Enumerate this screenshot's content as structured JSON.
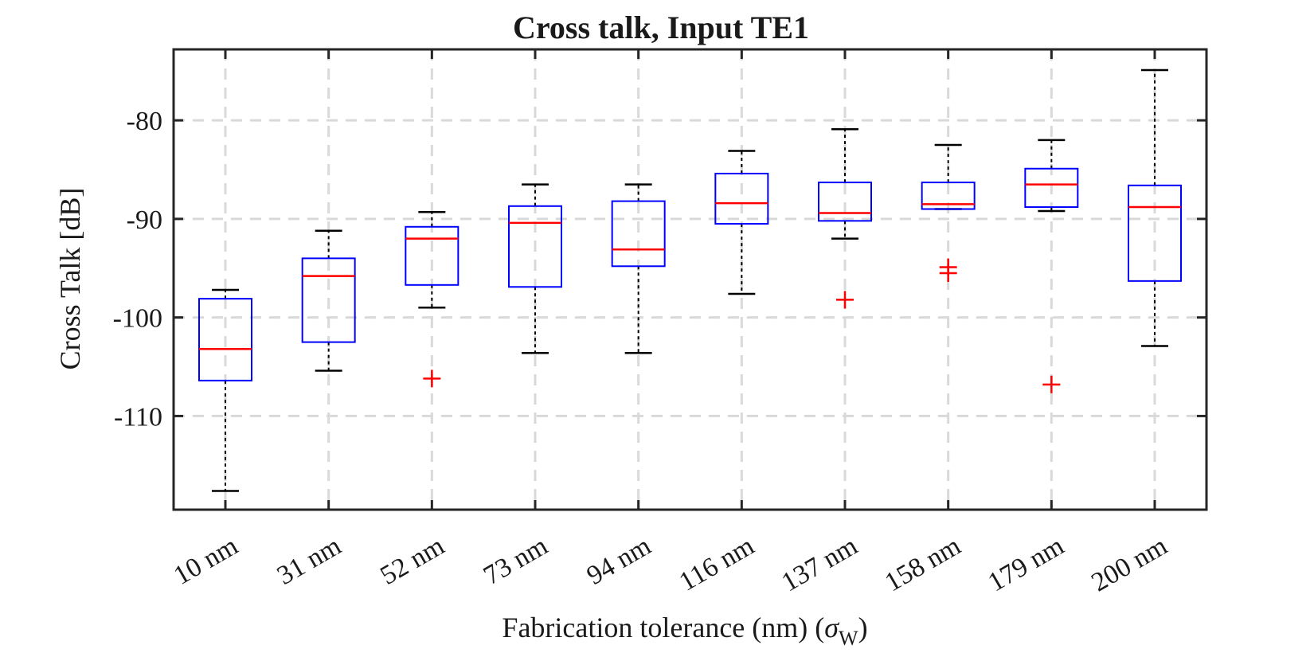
{
  "chart_data": {
    "type": "box",
    "title": "Cross talk, Input TE1",
    "xlabel": "Fabrication tolerance (nm) (",
    "xlabel_symbol": "σ",
    "xlabel_subscript": "W",
    "xlabel_close": ")",
    "ylabel": "Cross Talk [dB]",
    "ylim": [
      -119.5,
      -72.8
    ],
    "yticks": [
      -110,
      -100,
      -90,
      -80
    ],
    "ytick_labels": [
      "-110",
      "-100",
      "-90",
      "-80"
    ],
    "grid": true,
    "categories": [
      "10 nm",
      "31 nm",
      "52 nm",
      "73 nm",
      "94 nm",
      "116 nm",
      "137 nm",
      "158 nm",
      "179 nm",
      "200 nm"
    ],
    "boxes": [
      {
        "whisker_low": -117.6,
        "q1": -106.4,
        "median": -103.2,
        "q3": -98.1,
        "whisker_high": -97.2,
        "outliers": []
      },
      {
        "whisker_low": -105.4,
        "q1": -102.5,
        "median": -95.8,
        "q3": -94.0,
        "whisker_high": -91.2,
        "outliers": []
      },
      {
        "whisker_low": -99.0,
        "q1": -96.7,
        "median": -92.0,
        "q3": -90.8,
        "whisker_high": -89.3,
        "outliers": [
          -106.2
        ]
      },
      {
        "whisker_low": -103.6,
        "q1": -96.9,
        "median": -90.4,
        "q3": -88.7,
        "whisker_high": -86.5,
        "outliers": []
      },
      {
        "whisker_low": -103.6,
        "q1": -94.8,
        "median": -93.1,
        "q3": -88.2,
        "whisker_high": -86.5,
        "outliers": []
      },
      {
        "whisker_low": -97.6,
        "q1": -90.5,
        "median": -88.4,
        "q3": -85.4,
        "whisker_high": -83.1,
        "outliers": []
      },
      {
        "whisker_low": -92.0,
        "q1": -90.2,
        "median": -89.4,
        "q3": -86.3,
        "whisker_high": -80.9,
        "outliers": [
          -98.2
        ]
      },
      {
        "whisker_low": -89.0,
        "q1": -89.0,
        "median": -88.5,
        "q3": -86.3,
        "whisker_high": -82.5,
        "outliers": [
          -94.9,
          -95.5
        ]
      },
      {
        "whisker_low": -89.2,
        "q1": -88.8,
        "median": -86.5,
        "q3": -84.9,
        "whisker_high": -82.0,
        "outliers": [
          -106.8
        ]
      },
      {
        "whisker_low": -102.9,
        "q1": -96.3,
        "median": -88.8,
        "q3": -86.6,
        "whisker_high": -74.9,
        "outliers": []
      }
    ],
    "colors": {
      "box": "#0000ff",
      "median": "#ff0000",
      "whisker": "#000000",
      "outlier": "#ff0000",
      "grid": "#d9d9d9",
      "axes": "#262626"
    }
  }
}
